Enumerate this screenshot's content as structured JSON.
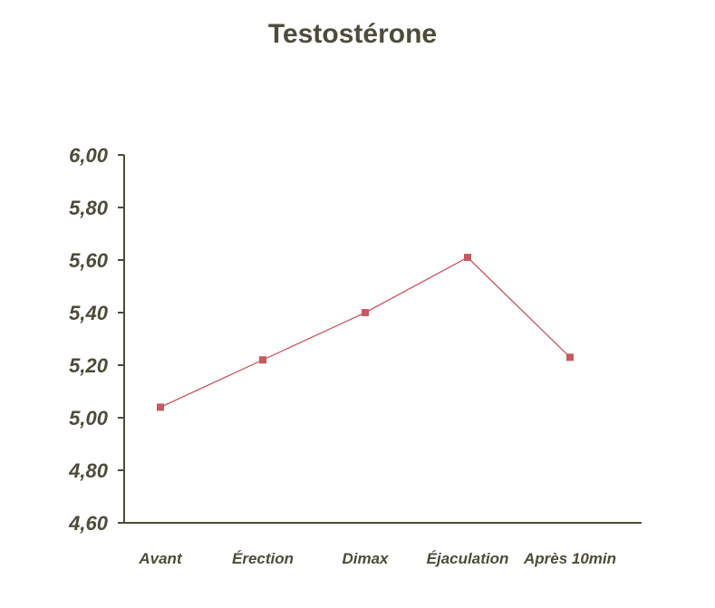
{
  "chart_data": {
    "type": "line",
    "title": "Testostérone",
    "xlabel": "",
    "ylabel": "",
    "categories": [
      "Avant",
      "Érection",
      "Dimax",
      "Éjaculation",
      "Après 10min"
    ],
    "series": [
      {
        "values": [
          5.04,
          5.22,
          5.4,
          5.61,
          5.23
        ]
      }
    ],
    "ylim": [
      4.6,
      6.0
    ],
    "yticks": [
      "6,00",
      "5,80",
      "5,60",
      "5,40",
      "5,20",
      "5,00",
      "4,80",
      "4,60"
    ],
    "grid": false,
    "legend": "none",
    "colors": {
      "line": "#c55a60",
      "axis": "#4d4c3a",
      "text": "#4d4c3a"
    }
  }
}
